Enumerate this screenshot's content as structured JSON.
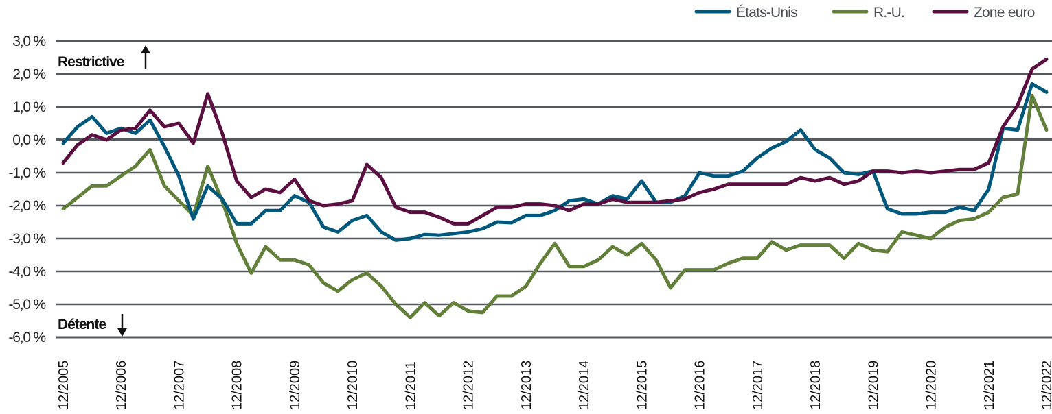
{
  "chart_data": {
    "type": "line",
    "title": "",
    "xlabel": "",
    "ylabel": "",
    "ylim": [
      -6.0,
      3.0
    ],
    "yticks": [
      "3,0 %",
      "2,0 %",
      "1,0 %",
      "0,0 %",
      "-1,0 %",
      "-2,0 %",
      "-3,0 %",
      "-4,0 %",
      "-5,0 %",
      "-6,0 %"
    ],
    "ytick_values": [
      3,
      2,
      1,
      0,
      -1,
      -2,
      -3,
      -4,
      -5,
      -6
    ],
    "xticks": [
      "12/2005",
      "12/2006",
      "12/2007",
      "12/2008",
      "12/2009",
      "12/2010",
      "12/2011",
      "12/2012",
      "12/2013",
      "12/2014",
      "12/2015",
      "12/2016",
      "12/2017",
      "12/2018",
      "12/2019",
      "12/2020",
      "12/2021",
      "12/2022"
    ],
    "grid": true,
    "legend_position": "top-right",
    "annotations": {
      "restrictive": "Restrictive",
      "easing": "Détente"
    },
    "x_frequency": "quarterly",
    "x_start": "12/2005",
    "x_end": "12/2022",
    "series": [
      {
        "name": "États-Unis",
        "color": "#00587c",
        "values": [
          -0.1,
          0.4,
          0.7,
          0.2,
          0.35,
          0.2,
          0.6,
          -0.2,
          -1.1,
          -2.4,
          -1.4,
          -1.8,
          -2.55,
          -2.55,
          -2.15,
          -2.15,
          -1.7,
          -1.9,
          -2.65,
          -2.8,
          -2.45,
          -2.3,
          -2.8,
          -3.05,
          -3.0,
          -2.88,
          -2.9,
          -2.85,
          -2.8,
          -2.7,
          -2.5,
          -2.52,
          -2.3,
          -2.3,
          -2.15,
          -1.85,
          -1.8,
          -1.95,
          -1.7,
          -1.8,
          -1.25,
          -1.9,
          -1.9,
          -1.7,
          -1.0,
          -1.1,
          -1.1,
          -0.95,
          -0.55,
          -0.25,
          -0.05,
          0.3,
          -0.3,
          -0.55,
          -1.0,
          -1.05,
          -0.95,
          -2.1,
          -2.25,
          -2.25,
          -2.2,
          -2.2,
          -2.05,
          -2.15,
          -1.5,
          0.35,
          0.3,
          1.7,
          1.45
        ]
      },
      {
        "name": "R.-U.",
        "color": "#62803a",
        "values": [
          -2.1,
          -1.75,
          -1.4,
          -1.4,
          -1.1,
          -0.8,
          -0.3,
          -1.4,
          -1.85,
          -2.3,
          -0.8,
          -1.85,
          -3.15,
          -4.05,
          -3.25,
          -3.65,
          -3.65,
          -3.8,
          -4.35,
          -4.6,
          -4.25,
          -4.05,
          -4.45,
          -5.0,
          -5.4,
          -4.95,
          -5.35,
          -4.95,
          -5.2,
          -5.25,
          -4.75,
          -4.75,
          -4.45,
          -3.75,
          -3.15,
          -3.85,
          -3.85,
          -3.65,
          -3.25,
          -3.5,
          -3.15,
          -3.65,
          -4.5,
          -3.95,
          -3.95,
          -3.95,
          -3.75,
          -3.6,
          -3.6,
          -3.1,
          -3.35,
          -3.2,
          -3.2,
          -3.2,
          -3.6,
          -3.15,
          -3.35,
          -3.4,
          -2.8,
          -2.9,
          -3.0,
          -2.65,
          -2.45,
          -2.4,
          -2.2,
          -1.75,
          -1.65,
          1.35,
          0.3
        ]
      },
      {
        "name": "Zone euro",
        "color": "#5b0f40",
        "values": [
          -0.7,
          -0.15,
          0.15,
          0.0,
          0.3,
          0.35,
          0.9,
          0.4,
          0.5,
          -0.1,
          1.4,
          0.2,
          -1.25,
          -1.75,
          -1.5,
          -1.6,
          -1.2,
          -1.85,
          -2.0,
          -1.95,
          -1.85,
          -0.75,
          -1.15,
          -2.05,
          -2.2,
          -2.2,
          -2.35,
          -2.55,
          -2.55,
          -2.3,
          -2.05,
          -2.05,
          -1.95,
          -1.95,
          -2.0,
          -2.15,
          -1.95,
          -1.95,
          -1.8,
          -1.9,
          -1.9,
          -1.9,
          -1.85,
          -1.8,
          -1.6,
          -1.5,
          -1.35,
          -1.35,
          -1.35,
          -1.35,
          -1.35,
          -1.15,
          -1.25,
          -1.15,
          -1.35,
          -1.25,
          -0.95,
          -0.95,
          -1.0,
          -0.95,
          -1.0,
          -0.95,
          -0.9,
          -0.9,
          -0.7,
          0.4,
          1.05,
          2.15,
          2.45
        ]
      }
    ]
  },
  "legend": {
    "items": [
      {
        "label": "États-Unis",
        "color": "#00587c"
      },
      {
        "label": "R.-U.",
        "color": "#62803a"
      },
      {
        "label": "Zone euro",
        "color": "#5b0f40"
      }
    ]
  },
  "annotations": {
    "restrictive_label": "Restrictive",
    "easing_label": "Détente"
  },
  "style": {
    "grid_color": "#555a61",
    "zero_line_color": "#555a61"
  }
}
